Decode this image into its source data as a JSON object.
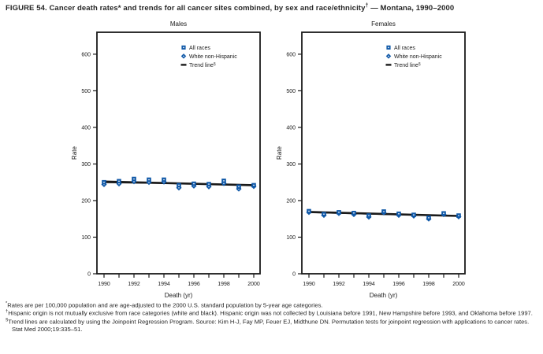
{
  "figure": {
    "title": {
      "prefix": "FIGURE 54. Cancer death rates* and trends for all cancer sites combined, by sex and race/ethnicity",
      "sup": "†",
      "suffix": " — Montana, 1990–2000"
    }
  },
  "colors": {
    "marker_blue": "#1159A8",
    "line_black": "#1a1a1a"
  },
  "chart_data": [
    {
      "type": "scatter",
      "title": "Males",
      "xlabel": "Death (yr)",
      "ylabel": "Rate",
      "ylim": [
        0,
        660
      ],
      "yticks": [
        0,
        100,
        200,
        300,
        400,
        500,
        600
      ],
      "x": [
        1990,
        1991,
        1992,
        1993,
        1994,
        1995,
        1996,
        1997,
        1998,
        1999,
        2000
      ],
      "xtick_labels": [
        "1990",
        "1992",
        "1994",
        "1996",
        "1998",
        "2000"
      ],
      "legend": [
        {
          "label": "All races",
          "marker": "square"
        },
        {
          "label": "White non-Hispanic",
          "marker": "diamond"
        },
        {
          "label": "Trend line",
          "sup": "§",
          "marker": "dash"
        }
      ],
      "series": [
        {
          "name": "All races",
          "marker": "square",
          "values": [
            250,
            253,
            259,
            257,
            257,
            242,
            246,
            245,
            254,
            238,
            242
          ]
        },
        {
          "name": "White non-Hispanic",
          "marker": "diamond",
          "values": [
            244,
            246,
            252,
            250,
            251,
            235,
            240,
            238,
            247,
            232,
            239
          ]
        }
      ],
      "trend_lines": [
        {
          "name": "All races trend",
          "start": 252,
          "end": 242
        },
        {
          "name": "White non-Hispanic trend",
          "start": 249,
          "end": 243
        }
      ],
      "grid": false,
      "legend_position": "upper-right-inside"
    },
    {
      "type": "scatter",
      "title": "Females",
      "xlabel": "Death (yr)",
      "ylabel": "Rate",
      "ylim": [
        0,
        660
      ],
      "yticks": [
        0,
        100,
        200,
        300,
        400,
        500,
        600
      ],
      "x": [
        1990,
        1991,
        1992,
        1993,
        1994,
        1995,
        1996,
        1997,
        1998,
        1999,
        2000
      ],
      "xtick_labels": [
        "1990",
        "1992",
        "1994",
        "1996",
        "1998",
        "2000"
      ],
      "legend": [
        {
          "label": "All races",
          "marker": "square"
        },
        {
          "label": "White non-Hispanic",
          "marker": "diamond"
        },
        {
          "label": "Trend line",
          "sup": "§",
          "marker": "dash"
        }
      ],
      "series": [
        {
          "name": "All races",
          "marker": "square",
          "values": [
            171,
            163,
            168,
            166,
            159,
            170,
            164,
            161,
            153,
            165,
            159
          ]
        },
        {
          "name": "White non-Hispanic",
          "marker": "diamond",
          "values": [
            168,
            160,
            165,
            162,
            155,
            167,
            160,
            158,
            150,
            162,
            156
          ]
        }
      ],
      "trend_lines": [
        {
          "name": "All races trend",
          "start": 169,
          "end": 158
        },
        {
          "name": "White non-Hispanic trend",
          "start": 167,
          "end": 157
        }
      ],
      "grid": false,
      "legend_position": "upper-right-inside"
    }
  ],
  "footnotes": [
    {
      "marker": "*",
      "text": "Rates are per 100,000 population and are age-adjusted to the 2000 U.S. standard population by 5-year age categories."
    },
    {
      "marker": "†",
      "text": "Hispanic origin is not mutually exclusive from race categories (white and black). Hispanic origin was not collected by Louisiana before 1991, New Hampshire before 1993, and Oklahoma before 1997."
    },
    {
      "marker": "§",
      "text": "Trend lines are calculated by using the Joinpoint Regression Program. Source: Kim H-J, Fay MP, Feuer EJ, Midthune DN. Permutation tests for joinpoint regression with applications to cancer rates. Stat Med 2000;19:335–51."
    }
  ]
}
